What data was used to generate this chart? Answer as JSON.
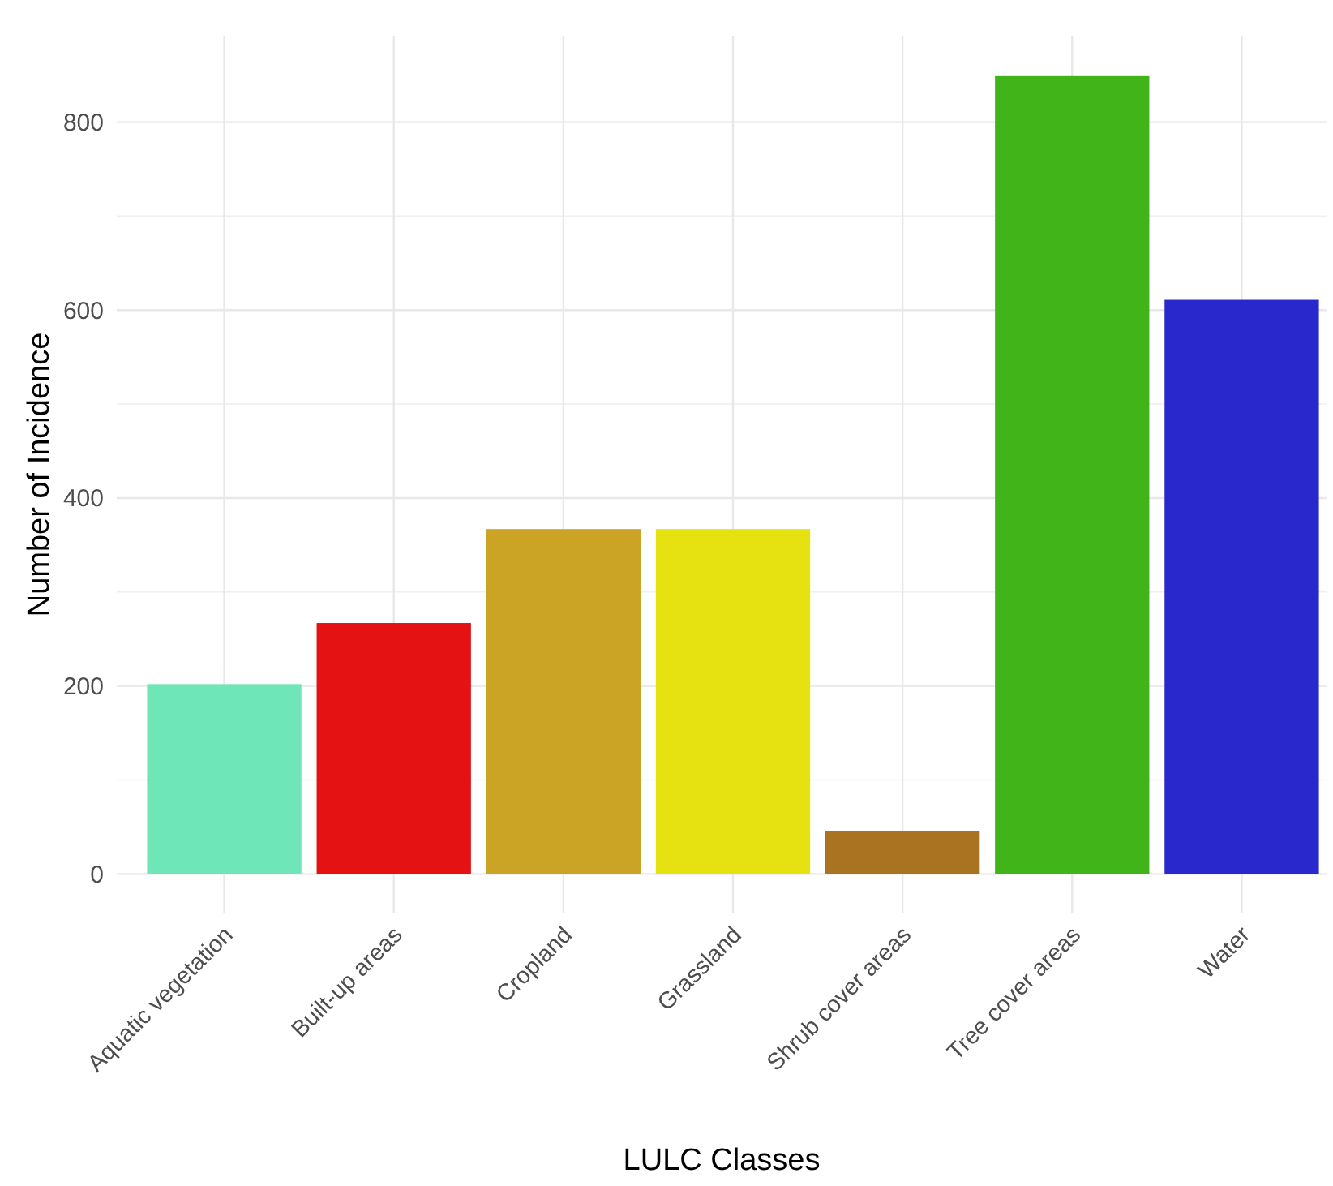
{
  "chart_data": {
    "type": "bar",
    "xlabel": "LULC Classes",
    "ylabel": "Number of Incidence",
    "categories": [
      "Aquatic vegetation",
      "Built-up areas",
      "Cropland",
      "Grassland",
      "Shrub cover areas",
      "Tree cover areas",
      "Water"
    ],
    "values": [
      202,
      267,
      367,
      367,
      46,
      849,
      611
    ],
    "colors": [
      "#6ee6b8",
      "#e41212",
      "#cba426",
      "#e6e212",
      "#aa7322",
      "#40b418",
      "#2828cc"
    ],
    "ylim": [
      -42,
      892
    ],
    "yticks": [
      0,
      200,
      400,
      600,
      800
    ],
    "grid": true
  }
}
